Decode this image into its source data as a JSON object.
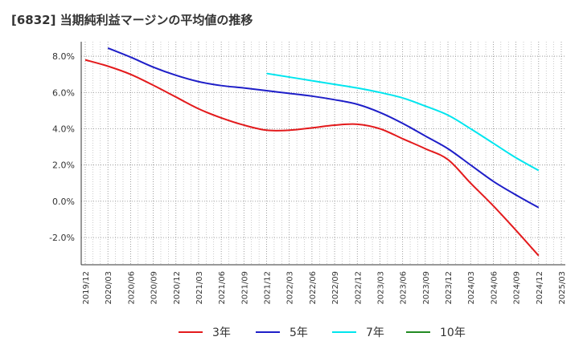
{
  "chart_data": {
    "type": "line",
    "title": "[6832]  当期純利益マージンの平均値の推移",
    "xlabel": "",
    "ylabel": "",
    "ylim": [
      -3.5,
      8.8
    ],
    "y_ticks": [
      "-2.0%",
      "0.0%",
      "2.0%",
      "4.0%",
      "6.0%",
      "8.0%"
    ],
    "y_tick_values": [
      -2,
      0,
      2,
      4,
      6,
      8
    ],
    "x_categories": [
      "2019/12",
      "2020/03",
      "2020/06",
      "2020/09",
      "2020/12",
      "2021/03",
      "2021/06",
      "2021/09",
      "2021/12",
      "2022/03",
      "2022/06",
      "2022/09",
      "2022/12",
      "2023/03",
      "2023/06",
      "2023/09",
      "2023/12",
      "2024/03",
      "2024/06",
      "2024/09",
      "2024/12",
      "2025/03"
    ],
    "grid": true,
    "legend_position": "bottom",
    "series": [
      {
        "name": "3年",
        "color": "#e31a1c",
        "points": [
          [
            "2019/12",
            7.8
          ],
          [
            "2020/03",
            7.45
          ],
          [
            "2020/06",
            7.0
          ],
          [
            "2020/09",
            6.4
          ],
          [
            "2020/12",
            5.75
          ],
          [
            "2021/03",
            5.1
          ],
          [
            "2021/06",
            4.6
          ],
          [
            "2021/09",
            4.2
          ],
          [
            "2021/12",
            3.92
          ],
          [
            "2022/03",
            3.92
          ],
          [
            "2022/06",
            4.05
          ],
          [
            "2022/09",
            4.2
          ],
          [
            "2022/12",
            4.25
          ],
          [
            "2023/03",
            4.0
          ],
          [
            "2023/06",
            3.45
          ],
          [
            "2023/09",
            2.9
          ],
          [
            "2023/12",
            2.3
          ],
          [
            "2024/03",
            1.0
          ],
          [
            "2024/06",
            -0.25
          ],
          [
            "2024/09",
            -1.6
          ],
          [
            "2024/12",
            -3.0
          ]
        ]
      },
      {
        "name": "5年",
        "color": "#1e1ec8",
        "points": [
          [
            "2020/03",
            8.45
          ],
          [
            "2020/06",
            7.95
          ],
          [
            "2020/09",
            7.4
          ],
          [
            "2020/12",
            6.95
          ],
          [
            "2021/03",
            6.6
          ],
          [
            "2021/06",
            6.38
          ],
          [
            "2021/09",
            6.25
          ],
          [
            "2021/12",
            6.1
          ],
          [
            "2022/03",
            5.95
          ],
          [
            "2022/06",
            5.8
          ],
          [
            "2022/09",
            5.6
          ],
          [
            "2022/12",
            5.35
          ],
          [
            "2023/03",
            4.9
          ],
          [
            "2023/06",
            4.3
          ],
          [
            "2023/09",
            3.6
          ],
          [
            "2023/12",
            2.9
          ],
          [
            "2024/03",
            2.0
          ],
          [
            "2024/06",
            1.1
          ],
          [
            "2024/09",
            0.35
          ],
          [
            "2024/12",
            -0.35
          ]
        ]
      },
      {
        "name": "7年",
        "color": "#00e5ee",
        "points": [
          [
            "2021/12",
            7.05
          ],
          [
            "2022/03",
            6.85
          ],
          [
            "2022/06",
            6.65
          ],
          [
            "2022/09",
            6.45
          ],
          [
            "2022/12",
            6.25
          ],
          [
            "2023/03",
            6.0
          ],
          [
            "2023/06",
            5.7
          ],
          [
            "2023/09",
            5.25
          ],
          [
            "2023/12",
            4.75
          ],
          [
            "2024/03",
            4.0
          ],
          [
            "2024/06",
            3.2
          ],
          [
            "2024/09",
            2.4
          ],
          [
            "2024/12",
            1.7
          ]
        ]
      },
      {
        "name": "10年",
        "color": "#228b22",
        "points": []
      }
    ]
  }
}
